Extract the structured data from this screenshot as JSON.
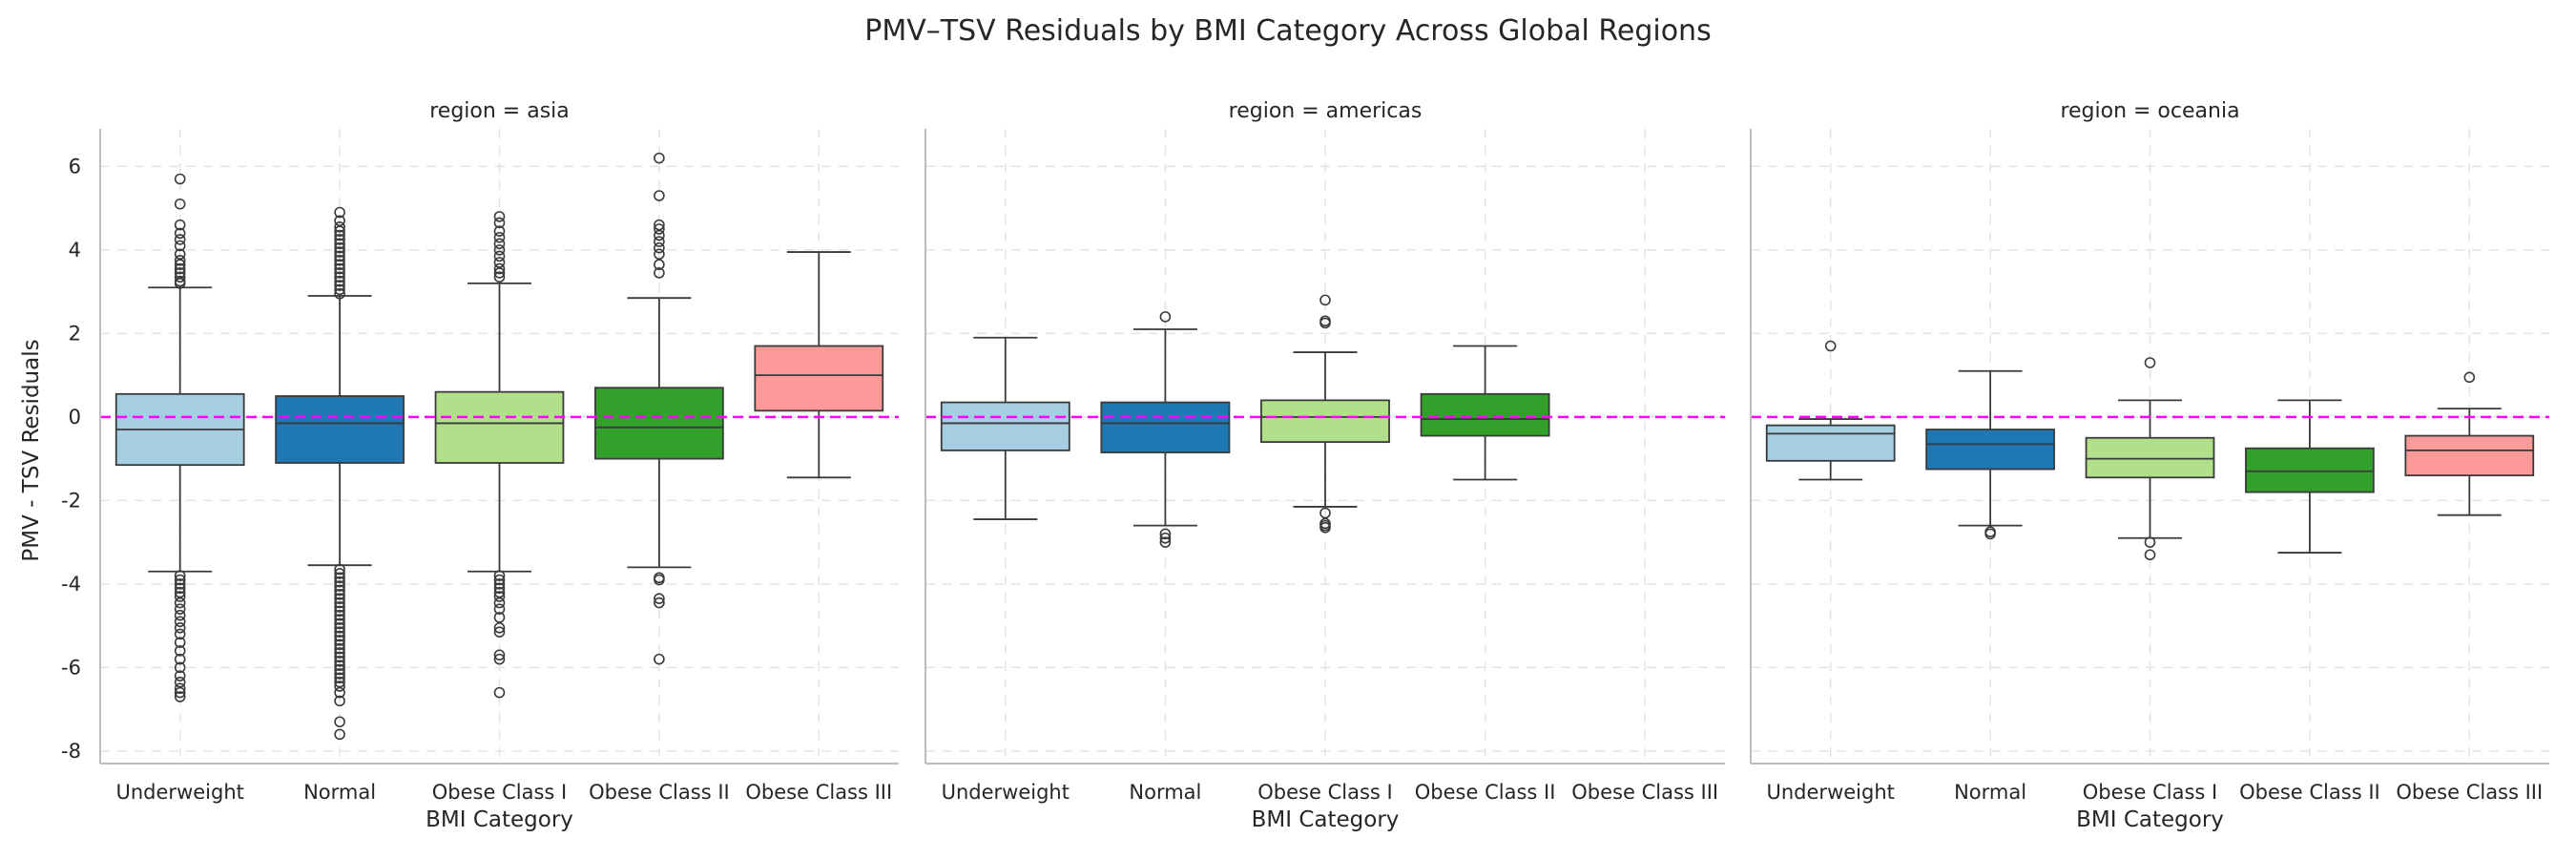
{
  "chart_data": {
    "type": "box",
    "title": "PMV–TSV Residuals by BMI Category Across Global Regions",
    "xlabel": "BMI Category",
    "ylabel": "PMV - TSV Residuals",
    "ylim": [
      -8.3,
      6.9
    ],
    "yticks": [
      -8,
      -6,
      -4,
      -2,
      0,
      2,
      4,
      6
    ],
    "grid": true,
    "reference_line": {
      "y": 0,
      "style": "dashed",
      "color": "#ff00ff"
    },
    "categories": [
      "Underweight",
      "Normal",
      "Obese Class I",
      "Obese Class II",
      "Obese Class III"
    ],
    "colors": {
      "Underweight": "#a6cee3",
      "Normal": "#1f78b4",
      "Obese Class I": "#b2df8a",
      "Obese Class II": "#33a02c",
      "Obese Class III": "#fb9a99"
    },
    "panels": [
      {
        "title": "region = asia",
        "boxes": [
          {
            "category": "Underweight",
            "whisker_low": -3.7,
            "q1": -1.15,
            "median": -0.3,
            "q3": 0.55,
            "whisker_high": 3.1,
            "outliers": [
              5.7,
              5.1,
              4.6,
              4.4,
              4.25,
              4.1,
              3.9,
              3.75,
              3.65,
              3.55,
              3.45,
              3.35,
              3.25,
              3.2,
              -3.8,
              -3.9,
              -4.0,
              -4.1,
              -4.2,
              -4.3,
              -4.45,
              -4.6,
              -4.75,
              -4.9,
              -5.05,
              -5.2,
              -5.4,
              -5.6,
              -5.8,
              -6.0,
              -6.2,
              -6.35,
              -6.5,
              -6.6,
              -6.7
            ]
          },
          {
            "category": "Normal",
            "whisker_low": -3.55,
            "q1": -1.1,
            "median": -0.15,
            "q3": 0.5,
            "whisker_high": 2.9,
            "outliers": [
              4.9,
              4.7,
              4.55,
              4.45,
              4.35,
              4.25,
              4.15,
              4.05,
              3.95,
              3.85,
              3.75,
              3.65,
              3.55,
              3.45,
              3.35,
              3.25,
              3.15,
              3.05,
              2.95,
              -3.65,
              -3.75,
              -3.85,
              -3.95,
              -4.05,
              -4.15,
              -4.25,
              -4.35,
              -4.45,
              -4.55,
              -4.65,
              -4.75,
              -4.85,
              -4.95,
              -5.05,
              -5.15,
              -5.25,
              -5.35,
              -5.45,
              -5.55,
              -5.65,
              -5.75,
              -5.85,
              -5.95,
              -6.05,
              -6.15,
              -6.25,
              -6.35,
              -6.45,
              -6.6,
              -6.8,
              -7.3,
              -7.6
            ]
          },
          {
            "category": "Obese Class I",
            "whisker_low": -3.7,
            "q1": -1.1,
            "median": -0.15,
            "q3": 0.6,
            "whisker_high": 3.2,
            "outliers": [
              4.8,
              4.65,
              4.45,
              4.3,
              4.15,
              4.0,
              3.85,
              3.7,
              3.55,
              3.45,
              3.35,
              -3.8,
              -3.9,
              -4.0,
              -4.1,
              -4.2,
              -4.3,
              -4.45,
              -4.6,
              -4.8,
              -5.05,
              -5.15,
              -5.7,
              -5.8,
              -6.6
            ]
          },
          {
            "category": "Obese Class II",
            "whisker_low": -3.6,
            "q1": -1.0,
            "median": -0.25,
            "q3": 0.7,
            "whisker_high": 2.85,
            "outliers": [
              6.2,
              5.3,
              4.6,
              4.5,
              4.35,
              4.2,
              4.05,
              3.9,
              3.65,
              3.45,
              -3.85,
              -3.9,
              -4.35,
              -4.45,
              -5.8
            ]
          },
          {
            "category": "Obese Class III",
            "whisker_low": -1.45,
            "q1": 0.15,
            "median": 1.0,
            "q3": 1.7,
            "whisker_high": 3.95,
            "outliers": []
          }
        ]
      },
      {
        "title": "region = americas",
        "boxes": [
          {
            "category": "Underweight",
            "whisker_low": -2.45,
            "q1": -0.8,
            "median": -0.15,
            "q3": 0.35,
            "whisker_high": 1.9,
            "outliers": []
          },
          {
            "category": "Normal",
            "whisker_low": -2.6,
            "q1": -0.85,
            "median": -0.15,
            "q3": 0.35,
            "whisker_high": 2.1,
            "outliers": [
              2.4,
              -2.8,
              -2.9,
              -3.0
            ]
          },
          {
            "category": "Obese Class I",
            "whisker_low": -2.15,
            "q1": -0.6,
            "median": 0.0,
            "q3": 0.4,
            "whisker_high": 1.55,
            "outliers": [
              2.8,
              2.3,
              2.25,
              -2.3,
              -2.55,
              -2.6,
              -2.65
            ]
          },
          {
            "category": "Obese Class II",
            "whisker_low": -1.5,
            "q1": -0.45,
            "median": -0.05,
            "q3": 0.55,
            "whisker_high": 1.7,
            "outliers": []
          }
        ]
      },
      {
        "title": "region = oceania",
        "boxes": [
          {
            "category": "Underweight",
            "whisker_low": -1.5,
            "q1": -1.05,
            "median": -0.4,
            "q3": -0.2,
            "whisker_high": -0.05,
            "outliers": [
              1.7
            ]
          },
          {
            "category": "Normal",
            "whisker_low": -2.6,
            "q1": -1.25,
            "median": -0.65,
            "q3": -0.3,
            "whisker_high": 1.1,
            "outliers": [
              -2.75,
              -2.8
            ]
          },
          {
            "category": "Obese Class I",
            "whisker_low": -2.9,
            "q1": -1.45,
            "median": -1.0,
            "q3": -0.5,
            "whisker_high": 0.4,
            "outliers": [
              1.3,
              -3.0,
              -3.3
            ]
          },
          {
            "category": "Obese Class II",
            "whisker_low": -3.25,
            "q1": -1.8,
            "median": -1.3,
            "q3": -0.75,
            "whisker_high": 0.4,
            "outliers": []
          },
          {
            "category": "Obese Class III",
            "whisker_low": -2.35,
            "q1": -1.4,
            "median": -0.8,
            "q3": -0.45,
            "whisker_high": 0.2,
            "outliers": [
              0.95
            ]
          }
        ]
      }
    ]
  }
}
